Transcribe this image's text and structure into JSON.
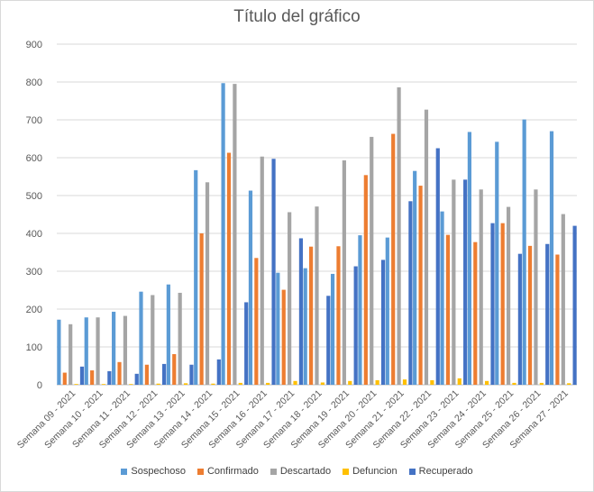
{
  "chart_data": {
    "type": "bar",
    "title": "Título del gráfico",
    "xlabel": "",
    "ylabel": "",
    "ylim": [
      0,
      900
    ],
    "yticks": [
      0,
      100,
      200,
      300,
      400,
      500,
      600,
      700,
      800,
      900
    ],
    "grid": true,
    "legend_position": "bottom",
    "categories": [
      "Semana 09 - 2021",
      "Semana 10 - 2021",
      "Semana 11 - 2021",
      "Semana 12 - 2021",
      "Semana 13 - 2021",
      "Semana 14 - 2021",
      "Semana 15 - 2021",
      "Semana 16 - 2021",
      "Semana 17 - 2021",
      "Semana 18 - 2021",
      "Semana 19 - 2021",
      "Semana 20 - 2021",
      "Semana 21 - 2021",
      "Semana 22 - 2021",
      "Semana 23 - 2021",
      "Semana 24 - 2021",
      "Semana 25 - 2021",
      "Semana 26 - 2021",
      "Semana 27 - 2021"
    ],
    "series": [
      {
        "name": "Sospechoso",
        "color": "#5b9bd5",
        "values": [
          172,
          178,
          193,
          246,
          265,
          567,
          797,
          513,
          296,
          308,
          293,
          395,
          389,
          565,
          458,
          668,
          642,
          701,
          670
        ]
      },
      {
        "name": "Confirmado",
        "color": "#ed7d31",
        "values": [
          32,
          38,
          60,
          53,
          81,
          400,
          613,
          335,
          251,
          365,
          366,
          554,
          663,
          526,
          396,
          377,
          427,
          367,
          344
        ]
      },
      {
        "name": "Descartado",
        "color": "#a5a5a5",
        "values": [
          160,
          178,
          182,
          237,
          243,
          535,
          795,
          603,
          456,
          471,
          593,
          655,
          786,
          727,
          542,
          516,
          470,
          516,
          451
        ]
      },
      {
        "name": "Defuncion",
        "color": "#ffc000",
        "values": [
          2,
          1,
          1,
          3,
          4,
          3,
          5,
          5,
          10,
          6,
          10,
          12,
          14,
          12,
          17,
          10,
          5,
          5,
          4
        ]
      },
      {
        "name": "Recuperado",
        "color": "#4472c4",
        "values": [
          48,
          36,
          29,
          55,
          53,
          67,
          218,
          597,
          387,
          235,
          313,
          330,
          485,
          625,
          542,
          427,
          346,
          372,
          420
        ]
      }
    ]
  }
}
